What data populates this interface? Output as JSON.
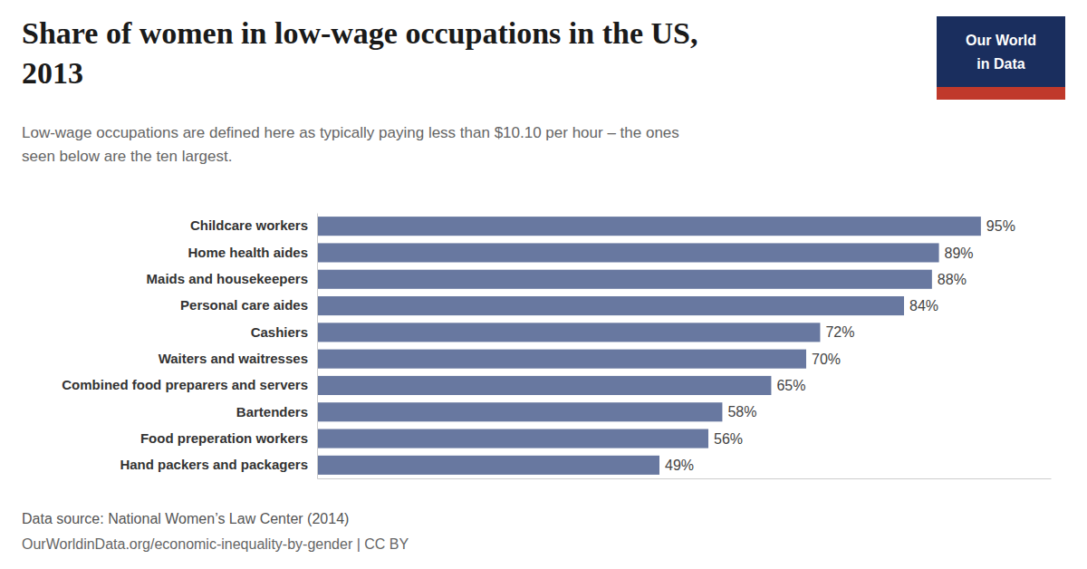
{
  "chart_data": {
    "type": "bar",
    "orientation": "horizontal",
    "title": "Share of women in low-wage occupations in the US,\n2013",
    "subtitle": "Low-wage occupations are defined here as typically paying less than $10.10 per hour – the ones\nseen below are the ten largest.",
    "categories": [
      "Hand packers and packagers",
      "Food preperation workers",
      "Bartenders",
      "Combined food preparers and servers",
      "Waiters and waitresses",
      "Cashiers",
      "Personal care aides",
      "Maids and housekeepers",
      "Home health aides",
      "Childcare workers"
    ],
    "values": [
      49,
      56,
      58,
      65,
      70,
      72,
      84,
      88,
      89,
      95
    ],
    "value_labels": [
      "49%",
      "56%",
      "58%",
      "65%",
      "70%",
      "72%",
      "84%",
      "88%",
      "89%",
      "95%"
    ],
    "color": "#6878a0",
    "xlim": [
      0,
      105
    ],
    "grid": false,
    "data_labels": true,
    "tick_labels": "y",
    "annotations": [
      "Data source: National Women’s Law Center (2014)",
      "OurWorldinData.org/economic-inequality-by-gender | CC BY",
      "Our World\nin Data"
    ]
  }
}
